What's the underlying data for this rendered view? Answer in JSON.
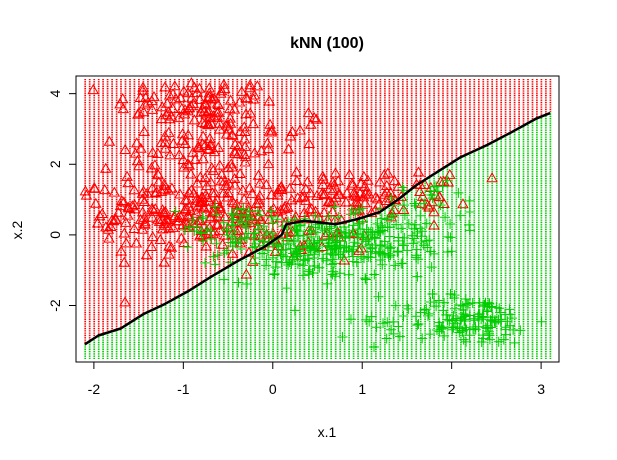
{
  "chart_data": {
    "type": "scatter",
    "title": "kNN (100)",
    "xlabel": "x.1",
    "ylabel": "x.2",
    "xlim": [
      -2.2,
      3.2
    ],
    "ylim": [
      -3.6,
      4.5
    ],
    "xticks": [
      -2,
      -1,
      0,
      1,
      2,
      3
    ],
    "yticks": [
      -2,
      0,
      2,
      4
    ],
    "grid": {
      "x_range": [
        -2.1,
        3.1
      ],
      "y_range": [
        -3.5,
        4.4
      ],
      "step": 0.05,
      "class_above_boundary_color": "#ff0000",
      "class_below_boundary_color": "#00cc00"
    },
    "series": [
      {
        "marker": "triangle",
        "color": "#ff0000",
        "clusters": [
          {
            "center": [
              -0.85,
              3.7
            ],
            "spread": [
              0.45,
              0.35
            ],
            "count": 95
          },
          {
            "center": [
              -0.75,
              2.5
            ],
            "spread": [
              0.5,
              0.45
            ],
            "count": 75
          },
          {
            "center": [
              -0.8,
              0.6
            ],
            "spread": [
              0.55,
              0.6
            ],
            "count": 250
          },
          {
            "center": [
              0.3,
              3.0
            ],
            "spread": [
              0.15,
              0.25
            ],
            "count": 10
          },
          {
            "center": [
              0.9,
              1.0
            ],
            "spread": [
              0.5,
              0.35
            ],
            "count": 90
          },
          {
            "center": [
              1.7,
              1.2
            ],
            "spread": [
              0.25,
              0.3
            ],
            "count": 25
          },
          {
            "center": [
              0.4,
              -0.2
            ],
            "spread": [
              0.3,
              0.3
            ],
            "count": 25
          },
          {
            "center": [
              -1.7,
              1.2
            ],
            "spread": [
              0.25,
              0.6
            ],
            "count": 20
          }
        ]
      },
      {
        "marker": "plus",
        "color": "#00cc00",
        "clusters": [
          {
            "center": [
              0.5,
              -0.4
            ],
            "spread": [
              0.5,
              0.45
            ],
            "count": 220
          },
          {
            "center": [
              1.2,
              0.0
            ],
            "spread": [
              0.45,
              0.45
            ],
            "count": 90
          },
          {
            "center": [
              -0.4,
              0.2
            ],
            "spread": [
              0.3,
              0.35
            ],
            "count": 60
          },
          {
            "center": [
              2.2,
              -2.4
            ],
            "spread": [
              0.35,
              0.35
            ],
            "count": 130
          },
          {
            "center": [
              1.8,
              0.8
            ],
            "spread": [
              0.3,
              0.35
            ],
            "count": 25
          },
          {
            "center": [
              1.3,
              -2.6
            ],
            "spread": [
              0.3,
              0.3
            ],
            "count": 15
          }
        ]
      }
    ],
    "decision_boundary": {
      "color": "#000000",
      "points": [
        [
          -2.1,
          -3.1
        ],
        [
          -1.95,
          -2.85
        ],
        [
          -1.7,
          -2.65
        ],
        [
          -1.45,
          -2.25
        ],
        [
          -1.2,
          -1.95
        ],
        [
          -0.95,
          -1.6
        ],
        [
          -0.7,
          -1.2
        ],
        [
          -0.4,
          -0.75
        ],
        [
          -0.1,
          -0.35
        ],
        [
          0.1,
          0.0
        ],
        [
          0.15,
          0.3
        ],
        [
          0.35,
          0.4
        ],
        [
          0.7,
          0.3
        ],
        [
          0.95,
          0.45
        ],
        [
          1.2,
          0.65
        ],
        [
          1.4,
          1.0
        ],
        [
          1.6,
          1.4
        ],
        [
          1.85,
          1.8
        ],
        [
          2.1,
          2.2
        ],
        [
          2.4,
          2.55
        ],
        [
          2.7,
          2.95
        ],
        [
          2.95,
          3.3
        ],
        [
          3.1,
          3.45
        ]
      ]
    }
  }
}
